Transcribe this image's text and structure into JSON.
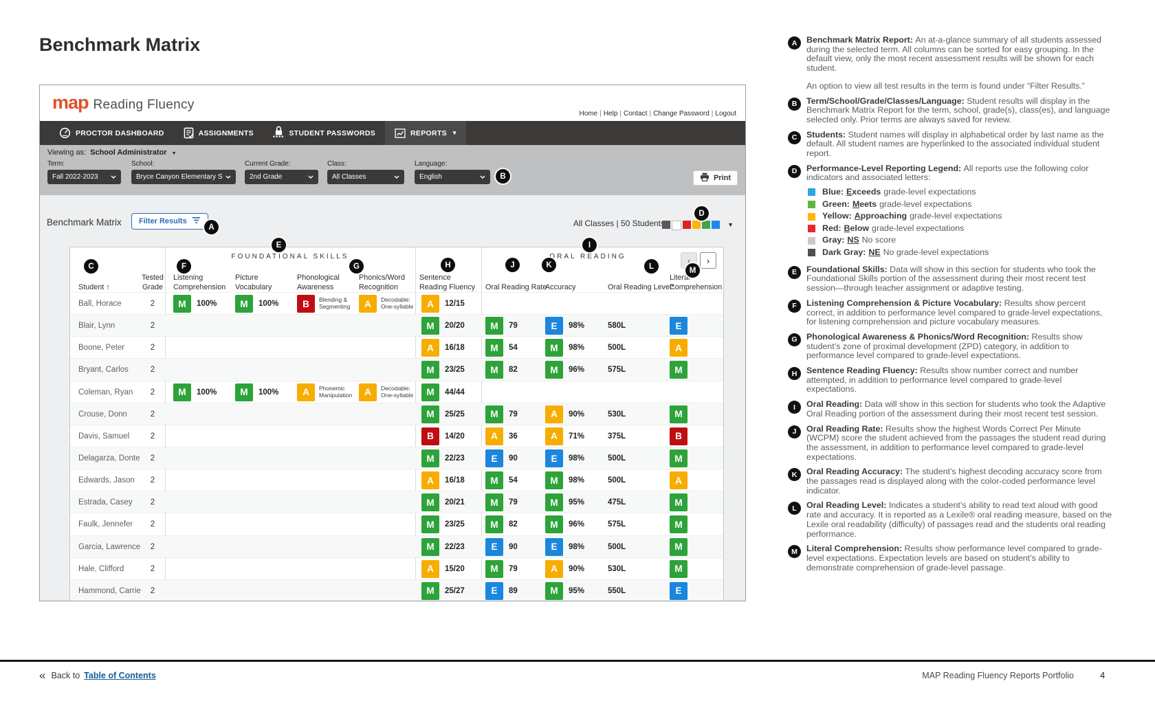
{
  "page": {
    "title": "Benchmark Matrix",
    "footer": {
      "back_chevrons": "«",
      "back_text": "Back to",
      "toc_link": "Table of Contents",
      "right_text": "MAP Reading Fluency Reports Portfolio",
      "page_number": "4"
    }
  },
  "app": {
    "logo": {
      "map": "map",
      "product": "Reading Fluency"
    },
    "top_links": [
      "Home",
      "Help",
      "Contact",
      "Change Password",
      "Logout"
    ],
    "nav": [
      {
        "label": "PROCTOR DASHBOARD",
        "icon": "gauge-icon"
      },
      {
        "label": "ASSIGNMENTS",
        "icon": "clipboard-icon"
      },
      {
        "label": "STUDENT PASSWORDS",
        "icon": "lock-icon",
        "sub": "****"
      },
      {
        "label": "REPORTS",
        "icon": "chart-icon",
        "caret": "▾",
        "active": true
      }
    ],
    "viewing_as": {
      "label": "Viewing as:",
      "value": "School Administrator",
      "caret": "▼"
    },
    "filters": [
      {
        "label": "Term:",
        "value": "Fall 2022-2023"
      },
      {
        "label": "School:",
        "value": "Bryce Canyon Elementary Scho"
      },
      {
        "label": "Current Grade:",
        "value": "2nd Grade"
      },
      {
        "label": "Class:",
        "value": "All Classes"
      },
      {
        "label": "Language:",
        "value": "English"
      }
    ],
    "print_label": "Print",
    "toolbar": {
      "title": "Benchmark Matrix",
      "filter_button": "Filter Results",
      "summary": "All Classes | 50 Students",
      "legend_squares": [
        "#58585a",
        "#ffffff",
        "#dd2420",
        "#ffb608",
        "#3fa648",
        "#1e88e5"
      ],
      "caret": "▼"
    },
    "pagination": {
      "prev": "‹",
      "next": "›"
    },
    "table": {
      "group_headers": {
        "foundational": "FOUNDATIONAL SKILLS",
        "oral": "ORAL READING"
      },
      "columns": [
        "Student ↑",
        "Tested Grade",
        "Listening Comprehension",
        "Picture Vocabulary",
        "Phonological Awareness",
        "Phonics/Word Recognition",
        "Sentence Reading Fluency",
        "Oral Reading Rate",
        "Accuracy",
        "Oral Reading Level*",
        "Literal Comprehension"
      ],
      "level_colors": {
        "E": "#1b86dd",
        "M": "#2da33a",
        "A": "#f7ad00",
        "B": "#bf0e12"
      },
      "rows": [
        {
          "name": "Ball, Horace",
          "grade": "2",
          "lc": {
            "lvl": "M",
            "txt": "100%"
          },
          "pv": {
            "lvl": "M",
            "txt": "100%"
          },
          "pa": {
            "lvl": "B",
            "txt": "Blending & Segmenting"
          },
          "pwr": {
            "lvl": "A",
            "txt": "Decodable: One-syllable"
          },
          "srf": {
            "lvl": "A",
            "txt": "12/15"
          },
          "orr": null,
          "acc": null,
          "level": "",
          "litc": null
        },
        {
          "name": "Blair, Lynn",
          "grade": "2",
          "lc": null,
          "pv": null,
          "pa": null,
          "pwr": null,
          "srf": {
            "lvl": "M",
            "txt": "20/20"
          },
          "orr": {
            "lvl": "M",
            "txt": "79"
          },
          "acc": {
            "lvl": "E",
            "txt": "98%"
          },
          "level": "580L",
          "litc": {
            "lvl": "E",
            "txt": ""
          }
        },
        {
          "name": "Boone, Peter",
          "grade": "2",
          "lc": null,
          "pv": null,
          "pa": null,
          "pwr": null,
          "srf": {
            "lvl": "A",
            "txt": "16/18"
          },
          "orr": {
            "lvl": "M",
            "txt": "54"
          },
          "acc": {
            "lvl": "M",
            "txt": "98%"
          },
          "level": "500L",
          "litc": {
            "lvl": "A",
            "txt": ""
          }
        },
        {
          "name": "Bryant, Carlos",
          "grade": "2",
          "lc": null,
          "pv": null,
          "pa": null,
          "pwr": null,
          "srf": {
            "lvl": "M",
            "txt": "23/25"
          },
          "orr": {
            "lvl": "M",
            "txt": "82"
          },
          "acc": {
            "lvl": "M",
            "txt": "96%"
          },
          "level": "575L",
          "litc": {
            "lvl": "M",
            "txt": ""
          }
        },
        {
          "name": "Coleman, Ryan",
          "grade": "2",
          "lc": {
            "lvl": "M",
            "txt": "100%"
          },
          "pv": {
            "lvl": "M",
            "txt": "100%"
          },
          "pa": {
            "lvl": "A",
            "txt": "Phonemic Manipulation"
          },
          "pwr": {
            "lvl": "A",
            "txt": "Decodable: One-syllable"
          },
          "srf": {
            "lvl": "M",
            "txt": "44/44"
          },
          "orr": null,
          "acc": null,
          "level": "",
          "litc": null
        },
        {
          "name": "Crouse, Donn",
          "grade": "2",
          "lc": null,
          "pv": null,
          "pa": null,
          "pwr": null,
          "srf": {
            "lvl": "M",
            "txt": "25/25"
          },
          "orr": {
            "lvl": "M",
            "txt": "79"
          },
          "acc": {
            "lvl": "A",
            "txt": "90%"
          },
          "level": "530L",
          "litc": {
            "lvl": "M",
            "txt": ""
          }
        },
        {
          "name": "Davis, Samuel",
          "grade": "2",
          "lc": null,
          "pv": null,
          "pa": null,
          "pwr": null,
          "srf": {
            "lvl": "B",
            "txt": "14/20"
          },
          "orr": {
            "lvl": "A",
            "txt": "36"
          },
          "acc": {
            "lvl": "A",
            "txt": "71%"
          },
          "level": "375L",
          "litc": {
            "lvl": "B",
            "txt": ""
          }
        },
        {
          "name": "Delagarza, Donte",
          "grade": "2",
          "lc": null,
          "pv": null,
          "pa": null,
          "pwr": null,
          "srf": {
            "lvl": "M",
            "txt": "22/23"
          },
          "orr": {
            "lvl": "E",
            "txt": "90"
          },
          "acc": {
            "lvl": "E",
            "txt": "98%"
          },
          "level": "500L",
          "litc": {
            "lvl": "M",
            "txt": ""
          }
        },
        {
          "name": "Edwards, Jason",
          "grade": "2",
          "lc": null,
          "pv": null,
          "pa": null,
          "pwr": null,
          "srf": {
            "lvl": "A",
            "txt": "16/18"
          },
          "orr": {
            "lvl": "M",
            "txt": "54"
          },
          "acc": {
            "lvl": "M",
            "txt": "98%"
          },
          "level": "500L",
          "litc": {
            "lvl": "A",
            "txt": ""
          }
        },
        {
          "name": "Estrada, Casey",
          "grade": "2",
          "lc": null,
          "pv": null,
          "pa": null,
          "pwr": null,
          "srf": {
            "lvl": "M",
            "txt": "20/21"
          },
          "orr": {
            "lvl": "M",
            "txt": "79"
          },
          "acc": {
            "lvl": "M",
            "txt": "95%"
          },
          "level": "475L",
          "litc": {
            "lvl": "M",
            "txt": ""
          }
        },
        {
          "name": "Faulk, Jennefer",
          "grade": "2",
          "lc": null,
          "pv": null,
          "pa": null,
          "pwr": null,
          "srf": {
            "lvl": "M",
            "txt": "23/25"
          },
          "orr": {
            "lvl": "M",
            "txt": "82"
          },
          "acc": {
            "lvl": "M",
            "txt": "96%"
          },
          "level": "575L",
          "litc": {
            "lvl": "M",
            "txt": ""
          }
        },
        {
          "name": "Garcia, Lawrence",
          "grade": "2",
          "lc": null,
          "pv": null,
          "pa": null,
          "pwr": null,
          "srf": {
            "lvl": "M",
            "txt": "22/23"
          },
          "orr": {
            "lvl": "E",
            "txt": "90"
          },
          "acc": {
            "lvl": "E",
            "txt": "98%"
          },
          "level": "500L",
          "litc": {
            "lvl": "M",
            "txt": ""
          }
        },
        {
          "name": "Hale, Clifford",
          "grade": "2",
          "lc": null,
          "pv": null,
          "pa": null,
          "pwr": null,
          "srf": {
            "lvl": "A",
            "txt": "15/20"
          },
          "orr": {
            "lvl": "M",
            "txt": "79"
          },
          "acc": {
            "lvl": "A",
            "txt": "90%"
          },
          "level": "530L",
          "litc": {
            "lvl": "M",
            "txt": ""
          }
        },
        {
          "name": "Hammond, Carrie",
          "grade": "2",
          "lc": null,
          "pv": null,
          "pa": null,
          "pwr": null,
          "srf": {
            "lvl": "M",
            "txt": "25/27"
          },
          "orr": {
            "lvl": "E",
            "txt": "89"
          },
          "acc": {
            "lvl": "M",
            "txt": "95%"
          },
          "level": "550L",
          "litc": {
            "lvl": "E",
            "txt": ""
          }
        }
      ]
    }
  },
  "annotations": [
    {
      "letter": "A",
      "title": "Benchmark Matrix Report:",
      "body": "An at-a-glance summary of all students assessed during the selected term. All columns can be sorted for easy grouping. In the default view, only the most recent assessment results will be shown for each student.",
      "extra": "An option to view all test results in the term is found under “Filter Results.”"
    },
    {
      "letter": "B",
      "title": "Term/School/Grade/Classes/Language:",
      "body": "Student results will display in the Benchmark Matrix Report for the term, school, grade(s), class(es), and language selected only. Prior terms are always saved for review."
    },
    {
      "letter": "C",
      "title": "Students:",
      "body": "Student names will display in alphabetical order by last name as the default. All student names are hyperlinked to the associated individual student report."
    },
    {
      "letter": "D",
      "title": "Performance-Level Reporting Legend:",
      "body": "All reports use the following color indicators and associated letters:",
      "legend": [
        {
          "color": "#2da7e0",
          "name": "Blue:",
          "key_u": "E",
          "key_rest": "xceeds",
          "rest": "grade-level expectations"
        },
        {
          "color": "#64b445",
          "name": "Green:",
          "key_u": "M",
          "key_rest": "eets",
          "rest": "grade-level expectations"
        },
        {
          "color": "#ffb608",
          "name": "Yellow:",
          "key_u": "A",
          "key_rest": "pproaching",
          "rest": "grade-level expectations"
        },
        {
          "color": "#e8272c",
          "name": "Red:",
          "key_u": "B",
          "key_rest": "elow",
          "rest": "grade-level expectations"
        },
        {
          "color": "#c9cacc",
          "name": "Gray:",
          "key_u": "NS",
          "key_rest": "",
          "rest": "No score"
        },
        {
          "color": "#4e4e50",
          "name": "Dark Gray:",
          "key_u": "NE",
          "key_rest": "",
          "rest": "No grade-level expectations"
        }
      ]
    },
    {
      "letter": "E",
      "title": "Foundational Skills:",
      "body": "Data will show in this section for students who took the Foundational Skills portion of the assessment during their most recent test session—through teacher assignment or adaptive testing."
    },
    {
      "letter": "F",
      "title": "Listening Comprehension & Picture Vocabulary:",
      "body": "Results show percent correct, in addition to performance level compared to grade-level expectations, for listening comprehension and picture vocabulary measures."
    },
    {
      "letter": "G",
      "title": "Phonological Awareness & Phonics/Word Recognition:",
      "body": "Results show student’s zone of proximal development (ZPD) category, in addition to performance level compared to grade-level expectations."
    },
    {
      "letter": "H",
      "title": "Sentence Reading Fluency:",
      "body": "Results show number correct and number attempted, in addition to performance level compared to grade-level expectations."
    },
    {
      "letter": "I",
      "title": "Oral Reading:",
      "body": "Data will show in this section for students who took the Adaptive Oral Reading portion of the assessment during their most recent test session."
    },
    {
      "letter": "J",
      "title": "Oral Reading Rate:",
      "body": "Results show the highest Words Correct Per Minute (WCPM) score the student achieved from the passages the student read during the assessment, in addition to performance level compared to grade-level expectations."
    },
    {
      "letter": "K",
      "title": "Oral Reading Accuracy:",
      "body": "The student’s highest decoding accuracy score from the passages read is displayed along with the color-coded performance level indicator."
    },
    {
      "letter": "L",
      "title": "Oral Reading Level:",
      "body": "Indicates a student’s ability to read text aloud with good rate and accuracy. It is reported as a Lexile® oral reading measure, based on the Lexile oral readability (difficulty) of passages read and the students oral reading performance."
    },
    {
      "letter": "M",
      "title": "Literal Comprehension:",
      "body": "Results show performance level compared to grade-level expectations. Expectation levels are based on student’s ability to demonstrate comprehension of grade-level passage."
    }
  ]
}
